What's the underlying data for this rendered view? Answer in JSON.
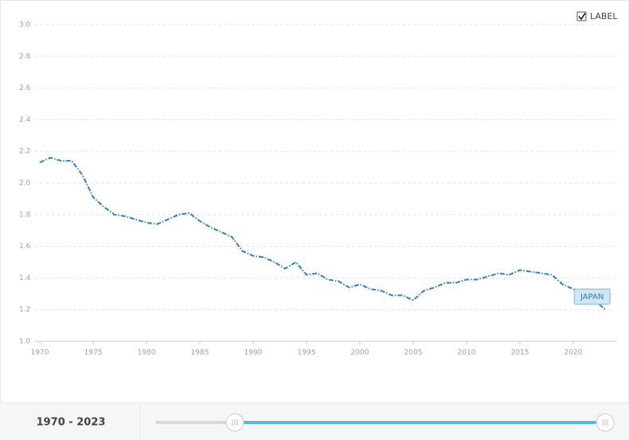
{
  "chart_data": {
    "type": "line",
    "x": [
      1970,
      1971,
      1972,
      1973,
      1974,
      1975,
      1976,
      1977,
      1978,
      1979,
      1980,
      1981,
      1982,
      1983,
      1984,
      1985,
      1986,
      1987,
      1988,
      1989,
      1990,
      1991,
      1992,
      1993,
      1994,
      1995,
      1996,
      1997,
      1998,
      1999,
      2000,
      2001,
      2002,
      2003,
      2004,
      2005,
      2006,
      2007,
      2008,
      2009,
      2010,
      2011,
      2012,
      2013,
      2014,
      2015,
      2016,
      2017,
      2018,
      2019,
      2020,
      2021,
      2022,
      2023
    ],
    "series": [
      {
        "name": "JAPAN",
        "color": "#2f80bd",
        "values": [
          2.13,
          2.16,
          2.14,
          2.14,
          2.05,
          1.91,
          1.85,
          1.8,
          1.79,
          1.77,
          1.75,
          1.74,
          1.77,
          1.8,
          1.81,
          1.76,
          1.72,
          1.69,
          1.66,
          1.57,
          1.54,
          1.53,
          1.5,
          1.46,
          1.5,
          1.42,
          1.43,
          1.39,
          1.38,
          1.34,
          1.36,
          1.33,
          1.32,
          1.29,
          1.29,
          1.26,
          1.32,
          1.34,
          1.37,
          1.37,
          1.39,
          1.39,
          1.41,
          1.43,
          1.42,
          1.45,
          1.44,
          1.43,
          1.42,
          1.36,
          1.33,
          1.3,
          1.26,
          1.2
        ]
      }
    ],
    "xlim": [
      1969.5,
      2024
    ],
    "xticks": [
      1970,
      1975,
      1980,
      1985,
      1990,
      1995,
      2000,
      2005,
      2010,
      2015,
      2020
    ],
    "ylim": [
      1.0,
      3.0
    ],
    "yticks": [
      {
        "value": 1,
        "label": "1.0"
      },
      1.2,
      1.4,
      1.6,
      1.8,
      {
        "value": 2,
        "label": "2.0"
      },
      2.2,
      2.4,
      2.6,
      2.8,
      {
        "value": 3,
        "label": "3.0"
      }
    ],
    "grid": true,
    "label_toggle": "LABEL",
    "range_label": "1970 - 2023"
  }
}
